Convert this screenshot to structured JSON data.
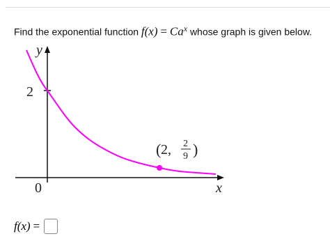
{
  "question": {
    "before": "Find the exponential function",
    "lhs": "f(x)",
    "eq": "=",
    "base": "Ca",
    "exponent": "x",
    "after": "whose graph is given below."
  },
  "graph": {
    "y_axis_label": "y",
    "x_axis_label": "x",
    "y_intercept_label": "2",
    "origin_label": "0",
    "point_label": {
      "open": "(",
      "x": "2,",
      "num": "2",
      "den": "9",
      "close": ")"
    }
  },
  "answer": {
    "lhs": "f(x)",
    "eq": "="
  }
}
